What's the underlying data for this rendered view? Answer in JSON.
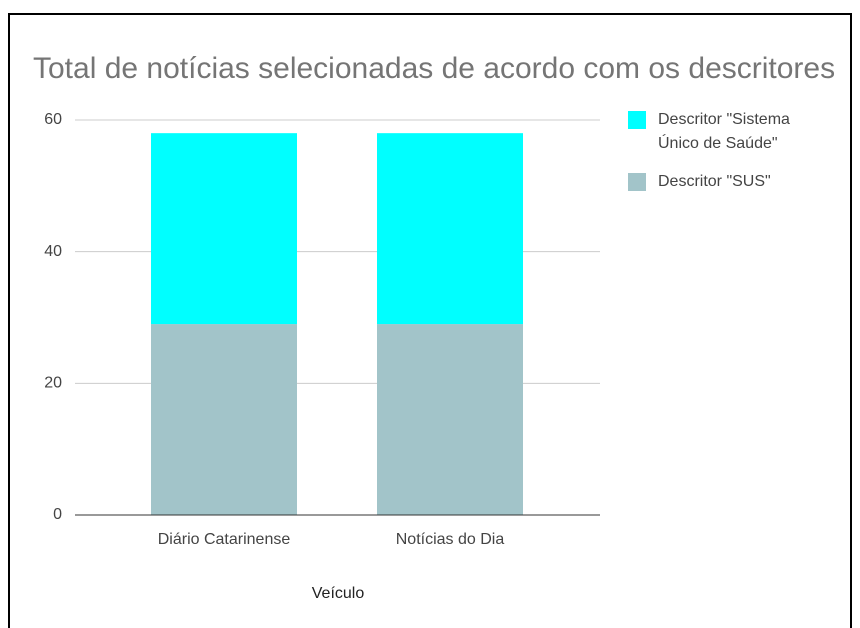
{
  "chart_data": {
    "type": "stacked_bar",
    "title": "Total de notícias selecionadas de acordo com os descritores",
    "x_label": "Veículo",
    "categories": [
      "Diário Catarinense",
      "Notícias do Dia"
    ],
    "series": [
      {
        "name": "Descritor \"Sistema Único de Saúde\"",
        "color": "#00ffff",
        "values": [
          29,
          29
        ]
      },
      {
        "name": "Descritor \"SUS\"",
        "color": "#a2c4c9",
        "values": [
          29,
          29
        ]
      }
    ],
    "ylim": [
      0,
      60
    ],
    "yticks": [
      0,
      20,
      40,
      60
    ],
    "grid": true,
    "legend": "right"
  }
}
